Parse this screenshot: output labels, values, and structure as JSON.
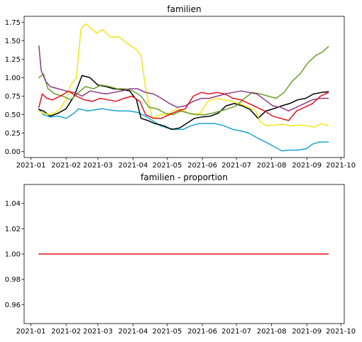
{
  "chart_data": [
    {
      "type": "line",
      "title": "familien",
      "xlabel": "",
      "ylabel": "",
      "x_ticks": [
        "2021-01",
        "2021-02",
        "2021-03",
        "2021-04",
        "2021-05",
        "2021-06",
        "2021-07",
        "2021-08",
        "2021-09",
        "2021-10"
      ],
      "y_ticks": [
        "0.00",
        "0.25",
        "0.50",
        "0.75",
        "1.00",
        "1.25",
        "1.50",
        "1.75"
      ],
      "xlim": [
        "2020-12-26",
        "2021-10-04"
      ],
      "ylim": [
        -0.08,
        1.83
      ],
      "grid": false,
      "series": [
        {
          "color": "#1aa3d4",
          "x": [
            "2021-01-08",
            "2021-01-12",
            "2021-01-18",
            "2021-01-25",
            "2021-02-01",
            "2021-02-08",
            "2021-02-12",
            "2021-02-20",
            "2021-02-28",
            "2021-03-05",
            "2021-03-12",
            "2021-03-20",
            "2021-03-28",
            "2021-04-05",
            "2021-04-12",
            "2021-04-18",
            "2021-04-25",
            "2021-05-01",
            "2021-05-08",
            "2021-05-15",
            "2021-05-22",
            "2021-05-29",
            "2021-06-05",
            "2021-06-12",
            "2021-06-20",
            "2021-06-28",
            "2021-07-05",
            "2021-07-12",
            "2021-07-20",
            "2021-07-28",
            "2021-08-04",
            "2021-08-10",
            "2021-08-16",
            "2021-08-24",
            "2021-09-01",
            "2021-09-06",
            "2021-09-12",
            "2021-09-20"
          ],
          "y": [
            0.58,
            0.5,
            0.47,
            0.48,
            0.45,
            0.52,
            0.58,
            0.55,
            0.57,
            0.58,
            0.56,
            0.55,
            0.55,
            0.53,
            0.48,
            0.42,
            0.35,
            0.32,
            0.3,
            0.3,
            0.35,
            0.38,
            0.38,
            0.38,
            0.35,
            0.3,
            0.28,
            0.25,
            0.18,
            0.12,
            0.06,
            0.01,
            0.02,
            0.02,
            0.04,
            0.1,
            0.13,
            0.13
          ]
        },
        {
          "color": "#000000",
          "x": [
            "2021-01-08",
            "2021-01-12",
            "2021-01-18",
            "2021-01-25",
            "2021-02-01",
            "2021-02-08",
            "2021-02-15",
            "2021-02-22",
            "2021-03-01",
            "2021-03-08",
            "2021-03-15",
            "2021-03-22",
            "2021-03-29",
            "2021-04-04",
            "2021-04-08",
            "2021-04-14",
            "2021-04-20",
            "2021-04-28",
            "2021-05-05",
            "2021-05-12",
            "2021-05-18",
            "2021-05-25",
            "2021-06-01",
            "2021-06-08",
            "2021-06-15",
            "2021-06-22",
            "2021-06-29",
            "2021-07-06",
            "2021-07-13",
            "2021-07-20",
            "2021-07-27",
            "2021-08-03",
            "2021-08-10",
            "2021-08-17",
            "2021-08-24",
            "2021-08-31",
            "2021-09-07",
            "2021-09-14",
            "2021-09-20"
          ],
          "y": [
            0.57,
            0.55,
            0.48,
            0.52,
            0.58,
            0.75,
            1.03,
            1.0,
            0.9,
            0.88,
            0.85,
            0.84,
            0.82,
            0.7,
            0.45,
            0.42,
            0.38,
            0.35,
            0.3,
            0.32,
            0.38,
            0.45,
            0.47,
            0.48,
            0.52,
            0.62,
            0.65,
            0.62,
            0.57,
            0.45,
            0.55,
            0.58,
            0.62,
            0.65,
            0.7,
            0.72,
            0.78,
            0.8,
            0.81
          ]
        },
        {
          "color": "#f5e614",
          "x": [
            "2021-01-08",
            "2021-01-12",
            "2021-01-18",
            "2021-01-25",
            "2021-02-01",
            "2021-02-05",
            "2021-02-10",
            "2021-02-14",
            "2021-02-18",
            "2021-02-22",
            "2021-02-28",
            "2021-03-05",
            "2021-03-12",
            "2021-03-20",
            "2021-03-28",
            "2021-04-04",
            "2021-04-08",
            "2021-04-12",
            "2021-04-18",
            "2021-04-25",
            "2021-05-02",
            "2021-05-09",
            "2021-05-16",
            "2021-05-23",
            "2021-05-30",
            "2021-06-06",
            "2021-06-13",
            "2021-06-20",
            "2021-06-27",
            "2021-07-04",
            "2021-07-11",
            "2021-07-18",
            "2021-07-22",
            "2021-07-28",
            "2021-08-04",
            "2021-08-11",
            "2021-08-18",
            "2021-08-25",
            "2021-09-01",
            "2021-09-08",
            "2021-09-14",
            "2021-09-20"
          ],
          "y": [
            0.55,
            0.52,
            0.5,
            0.55,
            0.7,
            0.9,
            1.0,
            1.65,
            1.73,
            1.68,
            1.6,
            1.65,
            1.55,
            1.55,
            1.45,
            1.38,
            1.3,
            0.85,
            0.45,
            0.5,
            0.5,
            0.58,
            0.55,
            0.5,
            0.52,
            0.68,
            0.72,
            0.7,
            0.68,
            0.65,
            0.6,
            0.55,
            0.4,
            0.35,
            0.36,
            0.37,
            0.35,
            0.36,
            0.35,
            0.33,
            0.38,
            0.35
          ]
        },
        {
          "color": "#6a9e2a",
          "x": [
            "2021-01-08",
            "2021-01-12",
            "2021-01-16",
            "2021-01-22",
            "2021-01-29",
            "2021-02-05",
            "2021-02-12",
            "2021-02-18",
            "2021-02-25",
            "2021-03-04",
            "2021-03-11",
            "2021-03-18",
            "2021-03-25",
            "2021-04-01",
            "2021-04-08",
            "2021-04-15",
            "2021-04-22",
            "2021-04-29",
            "2021-05-06",
            "2021-05-13",
            "2021-05-20",
            "2021-05-27",
            "2021-06-03",
            "2021-06-10",
            "2021-06-17",
            "2021-06-24",
            "2021-07-01",
            "2021-07-08",
            "2021-07-15",
            "2021-07-22",
            "2021-07-29",
            "2021-08-05",
            "2021-08-12",
            "2021-08-19",
            "2021-08-26",
            "2021-09-02",
            "2021-09-09",
            "2021-09-15",
            "2021-09-20"
          ],
          "y": [
            1.0,
            1.05,
            0.85,
            0.78,
            0.75,
            0.7,
            0.8,
            0.88,
            0.85,
            0.9,
            0.88,
            0.85,
            0.85,
            0.82,
            0.75,
            0.6,
            0.58,
            0.52,
            0.5,
            0.55,
            0.52,
            0.5,
            0.5,
            0.52,
            0.55,
            0.58,
            0.62,
            0.72,
            0.8,
            0.78,
            0.75,
            0.72,
            0.8,
            0.95,
            1.05,
            1.2,
            1.3,
            1.35,
            1.42
          ]
        },
        {
          "color": "#8b3a83",
          "x": [
            "2021-01-08",
            "2021-01-10",
            "2021-01-14",
            "2021-01-18",
            "2021-01-25",
            "2021-02-01",
            "2021-02-08",
            "2021-02-15",
            "2021-02-22",
            "2021-03-01",
            "2021-03-08",
            "2021-03-15",
            "2021-03-22",
            "2021-03-29",
            "2021-04-05",
            "2021-04-12",
            "2021-04-19",
            "2021-04-26",
            "2021-05-03",
            "2021-05-10",
            "2021-05-17",
            "2021-05-24",
            "2021-05-31",
            "2021-06-07",
            "2021-06-14",
            "2021-06-21",
            "2021-06-28",
            "2021-07-05",
            "2021-07-12",
            "2021-07-19",
            "2021-07-26",
            "2021-08-02",
            "2021-08-09",
            "2021-08-16",
            "2021-08-23",
            "2021-08-30",
            "2021-09-06",
            "2021-09-13",
            "2021-09-20"
          ],
          "y": [
            1.43,
            1.1,
            0.95,
            0.88,
            0.85,
            0.82,
            0.8,
            0.75,
            0.82,
            0.8,
            0.78,
            0.8,
            0.82,
            0.85,
            0.85,
            0.8,
            0.78,
            0.72,
            0.65,
            0.6,
            0.62,
            0.68,
            0.72,
            0.72,
            0.75,
            0.78,
            0.8,
            0.82,
            0.8,
            0.78,
            0.7,
            0.62,
            0.6,
            0.55,
            0.6,
            0.65,
            0.7,
            0.72,
            0.72
          ]
        },
        {
          "color": "#e3101e",
          "x": [
            "2021-01-08",
            "2021-01-11",
            "2021-01-15",
            "2021-01-20",
            "2021-01-27",
            "2021-02-03",
            "2021-02-10",
            "2021-02-17",
            "2021-02-24",
            "2021-03-03",
            "2021-03-10",
            "2021-03-17",
            "2021-03-24",
            "2021-03-31",
            "2021-04-07",
            "2021-04-12",
            "2021-04-19",
            "2021-04-26",
            "2021-05-03",
            "2021-05-10",
            "2021-05-17",
            "2021-05-24",
            "2021-05-31",
            "2021-06-07",
            "2021-06-14",
            "2021-06-21",
            "2021-06-28",
            "2021-07-05",
            "2021-07-12",
            "2021-07-19",
            "2021-07-26",
            "2021-08-02",
            "2021-08-09",
            "2021-08-16",
            "2021-08-23",
            "2021-08-30",
            "2021-09-06",
            "2021-09-13",
            "2021-09-20"
          ],
          "y": [
            0.6,
            0.78,
            0.72,
            0.7,
            0.75,
            0.82,
            0.75,
            0.7,
            0.68,
            0.72,
            0.7,
            0.68,
            0.72,
            0.75,
            0.68,
            0.5,
            0.45,
            0.45,
            0.5,
            0.55,
            0.58,
            0.75,
            0.8,
            0.78,
            0.8,
            0.78,
            0.72,
            0.7,
            0.65,
            0.6,
            0.55,
            0.48,
            0.45,
            0.42,
            0.55,
            0.6,
            0.65,
            0.75,
            0.8
          ]
        }
      ]
    },
    {
      "type": "line",
      "title": "familien - proportion",
      "xlabel": "",
      "ylabel": "",
      "x_ticks": [
        "2021-01",
        "2021-02",
        "2021-03",
        "2021-04",
        "2021-05",
        "2021-06",
        "2021-07",
        "2021-08",
        "2021-09",
        "2021-10"
      ],
      "y_ticks": [
        "0.96",
        "0.98",
        "1.00",
        "1.02",
        "1.04"
      ],
      "xlim": [
        "2020-12-26",
        "2021-10-04"
      ],
      "ylim": [
        0.945,
        1.055
      ],
      "grid": false,
      "series": [
        {
          "color": "#e3101e",
          "x": [
            "2021-01-08",
            "2021-09-20"
          ],
          "y": [
            1.0,
            1.0
          ]
        }
      ]
    }
  ]
}
